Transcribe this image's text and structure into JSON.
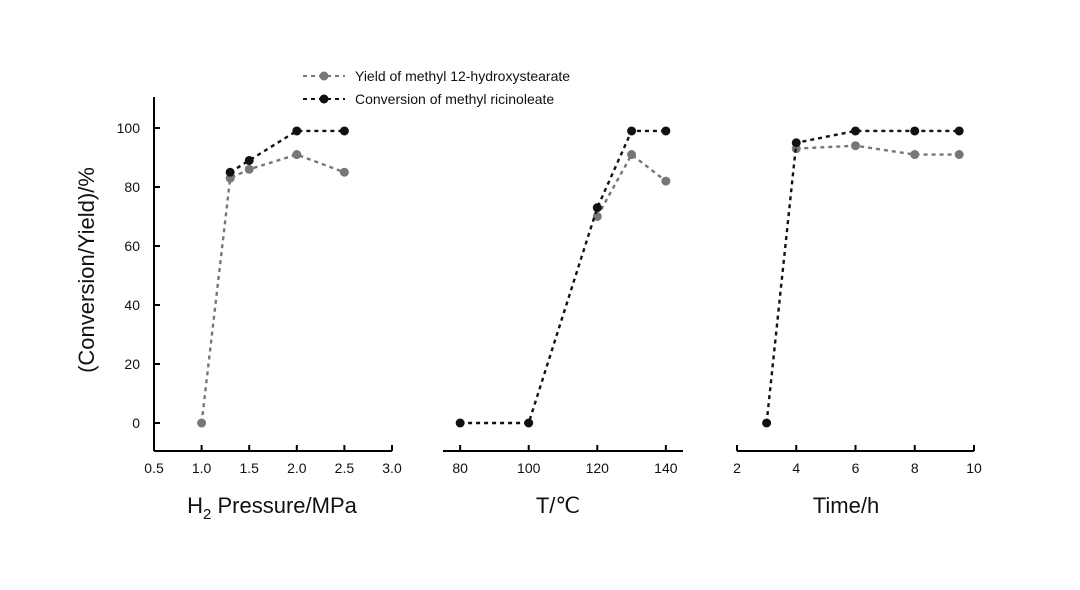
{
  "chart_data": {
    "type": "line",
    "ylabel": "(Conversion/Yield)/%",
    "yticks": [
      "0",
      "20",
      "40",
      "60",
      "80",
      "100"
    ],
    "ylim": [
      -9,
      110
    ],
    "legend": [
      {
        "name": "Yield of methyl 12-hydroxystearate",
        "color": "#777777"
      },
      {
        "name": "Conversion of methyl ricinoleate",
        "color": "#111111"
      }
    ],
    "panels": [
      {
        "xlabel_main": "H",
        "xlabel_sub": "2",
        "xlabel_rest": " Pressure/MPa",
        "xlim": [
          0.5,
          3.0
        ],
        "xticks": [
          "0.5",
          "1.0",
          "1.5",
          "2.0",
          "2.5",
          "3.0"
        ],
        "series": [
          {
            "name": "Yield of methyl 12-hydroxystearate",
            "x": [
              1.0,
              1.3,
              1.5,
              2.0,
              2.5
            ],
            "y": [
              0,
              83,
              86,
              91,
              85
            ]
          },
          {
            "name": "Conversion of methyl ricinoleate",
            "x": [
              1.3,
              1.5,
              2.0,
              2.5
            ],
            "y": [
              85,
              89,
              99,
              99
            ]
          }
        ]
      },
      {
        "xlabel_main": "T/℃",
        "xlabel_sub": "",
        "xlabel_rest": "",
        "xlim": [
          75,
          145
        ],
        "xticks": [
          "80",
          "100",
          "120",
          "140"
        ],
        "series": [
          {
            "name": "Yield of methyl 12-hydroxystearate",
            "x": [
              120,
              130,
              140
            ],
            "y": [
              70,
              91,
              82
            ]
          },
          {
            "name": "Conversion of methyl ricinoleate",
            "x": [
              80,
              100,
              120,
              130,
              140
            ],
            "y": [
              0,
              0,
              73,
              99,
              99
            ]
          }
        ]
      },
      {
        "xlabel_main": "Time/h",
        "xlabel_sub": "",
        "xlabel_rest": "",
        "xlim": [
          2,
          10
        ],
        "xticks": [
          "2",
          "4",
          "6",
          "8",
          "10"
        ],
        "series": [
          {
            "name": "Yield of methyl 12-hydroxystearate",
            "x": [
              4,
              6,
              8,
              9.5
            ],
            "y": [
              93,
              94,
              91,
              91
            ]
          },
          {
            "name": "Conversion of methyl ricinoleate",
            "x": [
              3,
              4,
              6,
              8,
              9.5
            ],
            "y": [
              0,
              95,
              99,
              99,
              99
            ]
          }
        ]
      }
    ]
  }
}
